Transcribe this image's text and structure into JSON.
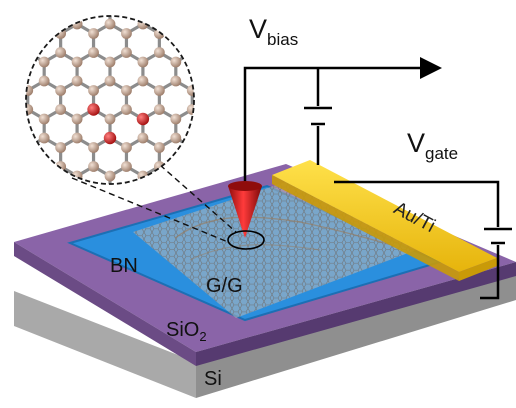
{
  "labels": {
    "v_bias_main": "V",
    "v_bias_sub": "bias",
    "v_gate_main": "V",
    "v_gate_sub": "gate",
    "bn": "BN",
    "gg": "G/G",
    "electrode": "Au/Ti",
    "sio2_main": "SiO",
    "sio2_sub": "2",
    "si": "Si"
  },
  "colors": {
    "si_top": "#d2d2d2",
    "si_left": "#a9a9a9",
    "si_right": "#8f8f8f",
    "sio2_top": "#8a64a8",
    "sio2_left": "#6b4b85",
    "sio2_right": "#563a70",
    "bn": "#2a8fde",
    "bn_edge": "#1c6fb4",
    "graphene": "#b9b9b9",
    "electrode_top": "#f6cc1a",
    "electrode_side": "#c99a08",
    "tip": "#d61f1f",
    "tip_dark": "#8f0c0c",
    "carbon_atom": "#c3a491",
    "defect_atom": "#d81c1c",
    "wire": "#000000"
  },
  "icons": [
    "stm-tip-icon",
    "lattice-inset-icon",
    "battery-symbol-icon",
    "arrow-icon"
  ]
}
